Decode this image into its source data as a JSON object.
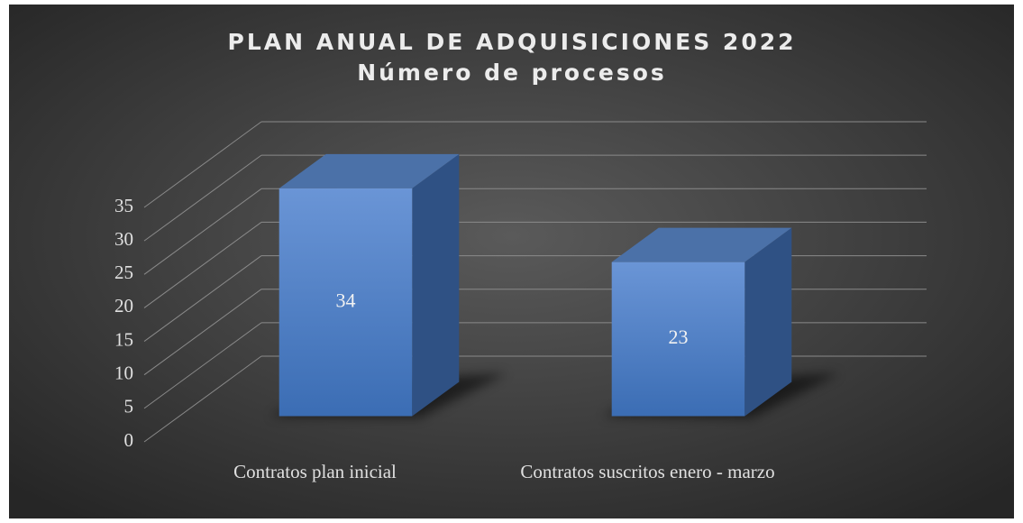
{
  "chart_data": {
    "type": "bar3d",
    "title": "PLAN ANUAL DE ADQUISICIONES 2022",
    "subtitle": "Número de procesos",
    "categories": [
      "Contratos plan inicial",
      "Contratos suscritos enero - marzo"
    ],
    "values": [
      34,
      23
    ],
    "color": "#4472c4",
    "ylim": [
      0,
      35
    ],
    "yticks": [
      0,
      5,
      10,
      15,
      20,
      25,
      30,
      35
    ],
    "grid": true
  }
}
